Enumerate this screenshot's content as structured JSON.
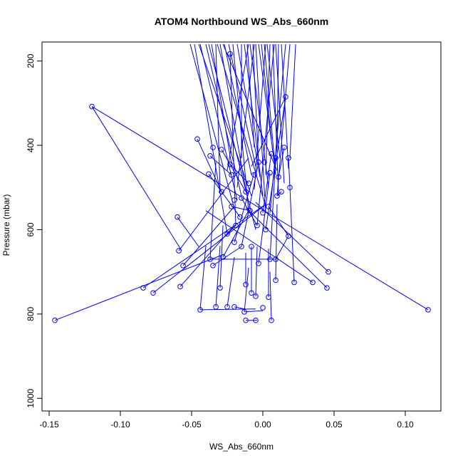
{
  "chart_data": {
    "type": "scatter",
    "title": "ATOM4 Northbound WS_Abs_660nm",
    "xlabel": "WS_Abs_660nm",
    "ylabel": "Pressure (mbar)",
    "xlim": [
      -0.155,
      0.125
    ],
    "ylim": [
      1030,
      155
    ],
    "y_reversed": true,
    "x_ticks": [
      -0.15,
      -0.1,
      -0.05,
      0.0,
      0.05,
      0.1
    ],
    "x_tick_labels": [
      "-0.15",
      "-0.10",
      "-0.05",
      "0.00",
      "0.05",
      "0.10"
    ],
    "y_ticks": [
      200,
      400,
      600,
      800,
      1000
    ],
    "y_tick_labels": [
      "200",
      "400",
      "600",
      "800",
      "1000"
    ],
    "grid": false,
    "legend": "none",
    "series_color": "#0000ff",
    "marker": "open-circle",
    "connected": true,
    "points": [
      {
        "x": -0.146,
        "y": 815
      },
      {
        "x": 0.116,
        "y": 790
      },
      {
        "x": 0.046,
        "y": 700
      },
      {
        "x": 0.045,
        "y": 738
      },
      {
        "x": -0.084,
        "y": 738
      },
      {
        "x": 0.035,
        "y": 725
      },
      {
        "x": -0.077,
        "y": 750
      },
      {
        "x": 0.022,
        "y": 725
      },
      {
        "x": -0.058,
        "y": 735
      },
      {
        "x": -0.044,
        "y": 790
      },
      {
        "x": -0.025,
        "y": 783
      },
      {
        "x": -0.033,
        "y": 783
      },
      {
        "x": -0.02,
        "y": 783
      },
      {
        "x": -0.013,
        "y": 795
      },
      {
        "x": 0.0,
        "y": 785
      },
      {
        "x": -0.012,
        "y": 815
      },
      {
        "x": -0.005,
        "y": 815
      },
      {
        "x": 0.006,
        "y": 815
      },
      {
        "x": -0.03,
        "y": 738
      },
      {
        "x": -0.012,
        "y": 730
      },
      {
        "x": -0.008,
        "y": 750
      },
      {
        "x": -0.005,
        "y": 758
      },
      {
        "x": 0.004,
        "y": 760
      },
      {
        "x": 0.009,
        "y": 720
      },
      {
        "x": -0.06,
        "y": 570
      },
      {
        "x": -0.059,
        "y": 650
      },
      {
        "x": -0.056,
        "y": 685
      },
      {
        "x": -0.037,
        "y": 670
      },
      {
        "x": -0.035,
        "y": 685
      },
      {
        "x": -0.028,
        "y": 665
      },
      {
        "x": -0.02,
        "y": 630
      },
      {
        "x": -0.015,
        "y": 640
      },
      {
        "x": -0.008,
        "y": 640
      },
      {
        "x": -0.003,
        "y": 680
      },
      {
        "x": 0.005,
        "y": 670
      },
      {
        "x": 0.009,
        "y": 670
      },
      {
        "x": -0.046,
        "y": 385
      },
      {
        "x": -0.037,
        "y": 425
      },
      {
        "x": -0.035,
        "y": 405
      },
      {
        "x": -0.038,
        "y": 468
      },
      {
        "x": -0.029,
        "y": 410
      },
      {
        "x": -0.023,
        "y": 445
      },
      {
        "x": -0.022,
        "y": 470
      },
      {
        "x": -0.029,
        "y": 510
      },
      {
        "x": -0.02,
        "y": 530
      },
      {
        "x": -0.016,
        "y": 570
      },
      {
        "x": -0.012,
        "y": 510
      },
      {
        "x": -0.01,
        "y": 490
      },
      {
        "x": -0.006,
        "y": 470
      },
      {
        "x": -0.003,
        "y": 440
      },
      {
        "x": 0.001,
        "y": 440
      },
      {
        "x": 0.005,
        "y": 465
      },
      {
        "x": 0.009,
        "y": 430
      },
      {
        "x": 0.011,
        "y": 475
      },
      {
        "x": 0.015,
        "y": 405
      },
      {
        "x": 0.018,
        "y": 430
      },
      {
        "x": 0.019,
        "y": 500
      },
      {
        "x": 0.016,
        "y": 285
      },
      {
        "x": -0.023,
        "y": 183
      },
      {
        "x": 0.002,
        "y": 600
      },
      {
        "x": 0.004,
        "y": 545
      },
      {
        "x": 0.018,
        "y": 615
      },
      {
        "x": -0.019,
        "y": 590
      },
      {
        "x": -0.025,
        "y": 610
      },
      {
        "x": -0.022,
        "y": 545
      },
      {
        "x": -0.015,
        "y": 525
      },
      {
        "x": -0.009,
        "y": 555
      },
      {
        "x": -0.004,
        "y": 590
      },
      {
        "x": 0.0,
        "y": 560
      },
      {
        "x": 0.006,
        "y": 420
      },
      {
        "x": 0.01,
        "y": 520
      },
      {
        "x": 0.013,
        "y": 510
      },
      {
        "x": -0.12,
        "y": 308
      }
    ],
    "segments": [
      [
        -0.146,
        815,
        -0.027,
        658
      ],
      [
        0.116,
        790,
        -0.12,
        308
      ],
      [
        -0.12,
        308,
        -0.057,
        650
      ],
      [
        0.046,
        700,
        -0.005,
        535
      ],
      [
        0.045,
        738,
        -0.012,
        548
      ],
      [
        -0.084,
        738,
        0.001,
        542
      ],
      [
        -0.077,
        750,
        0.002,
        540
      ],
      [
        0.035,
        725,
        -0.04,
        555
      ],
      [
        -0.058,
        735,
        -0.02,
        590
      ],
      [
        -0.044,
        790,
        -0.04,
        638
      ],
      [
        -0.044,
        790,
        -0.005,
        788
      ],
      [
        -0.033,
        783,
        -0.03,
        638
      ],
      [
        -0.025,
        783,
        -0.02,
        665
      ],
      [
        -0.02,
        783,
        -0.013,
        788
      ],
      [
        -0.013,
        795,
        0.0,
        792
      ],
      [
        -0.013,
        795,
        -0.01,
        690
      ],
      [
        -0.012,
        815,
        -0.004,
        815
      ],
      [
        0.006,
        815,
        0.005,
        700
      ],
      [
        0.022,
        725,
        0.019,
        500
      ],
      [
        0.009,
        720,
        0.01,
        540
      ],
      [
        0.004,
        760,
        0.004,
        645
      ],
      [
        -0.005,
        758,
        -0.004,
        640
      ],
      [
        -0.008,
        750,
        -0.008,
        640
      ],
      [
        -0.012,
        730,
        -0.012,
        655
      ],
      [
        -0.03,
        738,
        -0.028,
        590
      ],
      [
        -0.06,
        570,
        -0.045,
        640
      ],
      [
        -0.059,
        650,
        -0.01,
        430
      ],
      [
        -0.056,
        685,
        -0.02,
        545
      ],
      [
        -0.037,
        670,
        -0.033,
        440
      ],
      [
        -0.037,
        670,
        0.009,
        670
      ],
      [
        -0.035,
        685,
        -0.015,
        640
      ],
      [
        -0.028,
        665,
        -0.01,
        555
      ],
      [
        -0.02,
        630,
        -0.006,
        465
      ],
      [
        -0.015,
        640,
        -0.003,
        440
      ],
      [
        -0.003,
        680,
        0.005,
        465
      ],
      [
        0.005,
        670,
        0.009,
        430
      ],
      [
        0.009,
        670,
        0.018,
        615
      ],
      [
        -0.046,
        385,
        -0.029,
        510
      ],
      [
        -0.037,
        425,
        -0.022,
        470
      ],
      [
        -0.038,
        468,
        -0.016,
        570
      ],
      [
        -0.029,
        410,
        -0.012,
        510
      ],
      [
        -0.023,
        445,
        -0.01,
        490
      ],
      [
        0.016,
        285,
        -0.008,
        450
      ],
      [
        0.016,
        285,
        0.002,
        600
      ],
      [
        -0.023,
        183,
        -0.019,
        590
      ],
      [
        -0.022,
        545,
        -0.009,
        555
      ],
      [
        -0.015,
        525,
        -0.004,
        590
      ],
      [
        0.0,
        560,
        0.006,
        420
      ],
      [
        0.01,
        520,
        0.013,
        510
      ],
      [
        0.011,
        475,
        0.015,
        405
      ],
      [
        0.018,
        430,
        0.019,
        500
      ],
      [
        -0.025,
        610,
        -0.019,
        590
      ],
      [
        0.004,
        545,
        0.018,
        615
      ],
      [
        -0.051,
        160,
        -0.02,
        550
      ],
      [
        -0.048,
        160,
        -0.025,
        610
      ],
      [
        -0.044,
        160,
        -0.018,
        530
      ],
      [
        -0.04,
        160,
        -0.015,
        520
      ],
      [
        -0.036,
        160,
        -0.022,
        445
      ],
      [
        -0.033,
        160,
        -0.03,
        510
      ],
      [
        -0.03,
        160,
        -0.012,
        505
      ],
      [
        -0.027,
        160,
        -0.008,
        470
      ],
      [
        -0.024,
        160,
        -0.005,
        450
      ],
      [
        -0.021,
        160,
        -0.01,
        555
      ],
      [
        -0.018,
        160,
        -0.002,
        475
      ],
      [
        -0.015,
        160,
        -0.015,
        430
      ],
      [
        -0.013,
        160,
        0.0,
        520
      ],
      [
        -0.011,
        160,
        -0.006,
        405
      ],
      [
        -0.009,
        160,
        0.004,
        500
      ],
      [
        -0.007,
        160,
        -0.003,
        440
      ],
      [
        -0.005,
        160,
        0.002,
        560
      ],
      [
        -0.003,
        160,
        0.008,
        440
      ],
      [
        -0.001,
        160,
        0.006,
        385
      ],
      [
        0.001,
        160,
        0.009,
        470
      ],
      [
        0.003,
        160,
        0.012,
        430
      ],
      [
        0.005,
        160,
        0.002,
        470
      ],
      [
        0.007,
        160,
        0.011,
        520
      ],
      [
        0.009,
        160,
        0.015,
        490
      ],
      [
        0.011,
        160,
        0.01,
        405
      ],
      [
        0.013,
        160,
        0.018,
        455
      ],
      [
        0.016,
        160,
        0.005,
        560
      ],
      [
        0.019,
        160,
        0.01,
        520
      ],
      [
        0.023,
        160,
        0.019,
        430
      ],
      [
        -0.01,
        160,
        -0.025,
        460
      ],
      [
        -0.006,
        160,
        -0.018,
        500
      ],
      [
        0.002,
        160,
        -0.006,
        505
      ],
      [
        0.008,
        160,
        -0.004,
        590
      ],
      [
        -0.045,
        160,
        -0.008,
        520
      ],
      [
        -0.038,
        160,
        -0.005,
        600
      ],
      [
        -0.032,
        160,
        0.002,
        545
      ],
      [
        -0.028,
        160,
        0.01,
        460
      ]
    ]
  }
}
